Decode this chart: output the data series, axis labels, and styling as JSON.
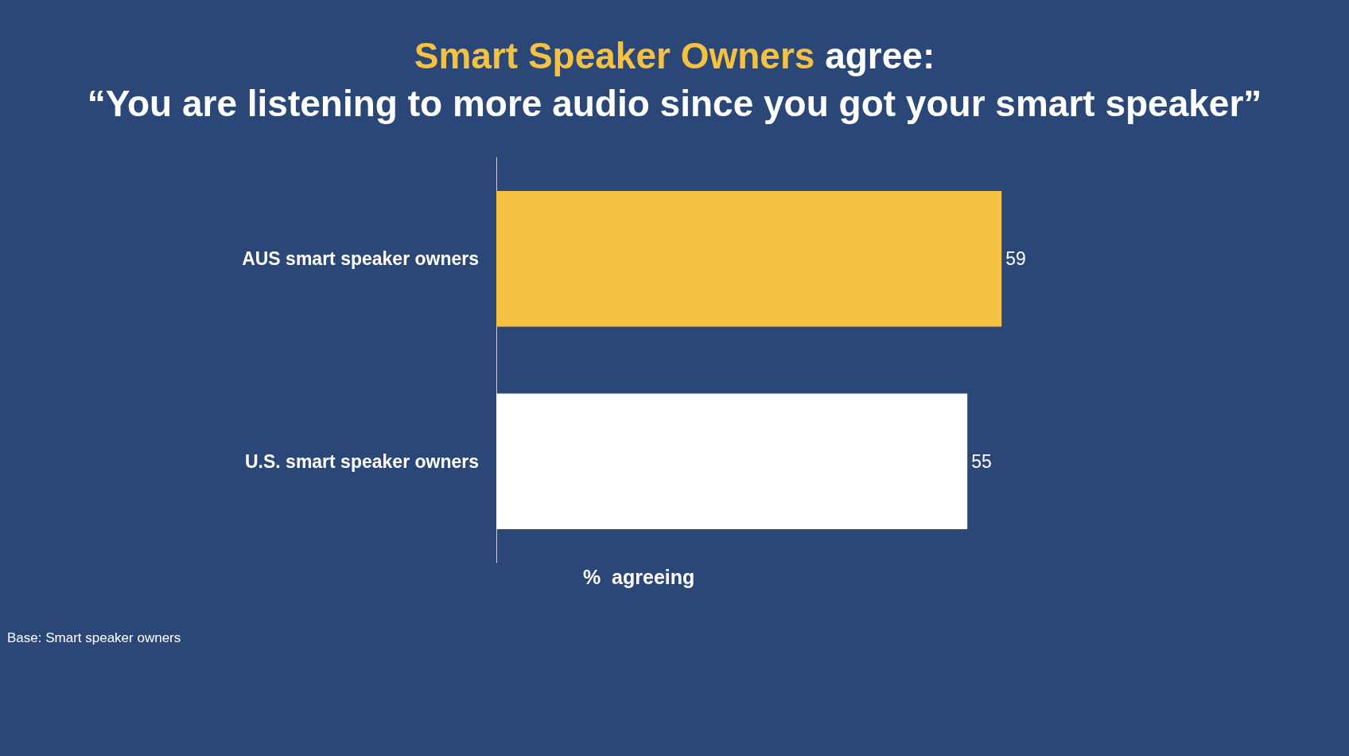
{
  "chart_data": {
    "type": "bar",
    "orientation": "horizontal",
    "title": "Smart Speaker Owners agree:",
    "subtitle": "“You are listening to more audio since you got your smart speaker”",
    "categories": [
      "AUS smart speaker owners",
      "U.S. smart speaker owners"
    ],
    "values": [
      59,
      55
    ],
    "colors": [
      "#f4c142",
      "#ffffff"
    ],
    "data_labels": true,
    "xlabel": "%  agreeing",
    "annotations": [
      "Base: Smart speaker owners"
    ]
  }
}
